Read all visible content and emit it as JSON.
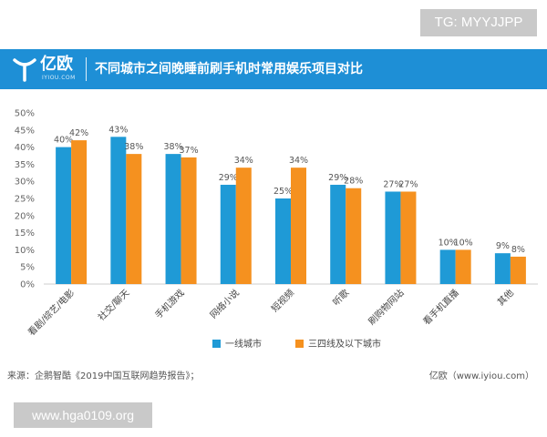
{
  "watermark_top": "TG: MYYJJPP",
  "watermark_bottom": "www.hga0109.org",
  "brand": {
    "logo_text": "亿欧",
    "logo_sub": "IYIOU.COM"
  },
  "footer": {
    "source": "来源：企鹅智酷《2019中国互联网趋势报告》；",
    "brand_site": "亿欧（www.iyiou.com）"
  },
  "colors": {
    "header": "#1e8fd6",
    "series1": "#1f9ad6",
    "series2": "#f5911f"
  },
  "chart_data": {
    "type": "bar",
    "title": "不同城市之间晚睡前刷手机时常用娱乐项目对比",
    "categories": [
      "看剧/综艺/电影",
      "社交/聊天",
      "手机游戏",
      "网络小说",
      "短视频",
      "听歌",
      "刷购物网站",
      "看手机直播",
      "其他"
    ],
    "series": [
      {
        "name": "一线城市",
        "values": [
          40,
          43,
          38,
          29,
          25,
          29,
          27,
          10,
          9
        ],
        "labels": [
          "40%",
          "43%",
          "38%",
          "29%",
          "25%",
          "29%",
          "27%",
          "10%",
          "9%"
        ]
      },
      {
        "name": "三四线及以下城市",
        "values": [
          42,
          38,
          37,
          34,
          34,
          28,
          27,
          10,
          8
        ],
        "labels": [
          "42%",
          "38%",
          "37%",
          "34%",
          "34%",
          "28%",
          "27%",
          "10%",
          "8%"
        ]
      }
    ],
    "yticks": [
      "0%",
      "5%",
      "10%",
      "15%",
      "20%",
      "25%",
      "30%",
      "35%",
      "40%",
      "45%",
      "50%"
    ],
    "ylim": [
      0,
      50
    ],
    "grid": false,
    "legend_position": "bottom-center"
  }
}
